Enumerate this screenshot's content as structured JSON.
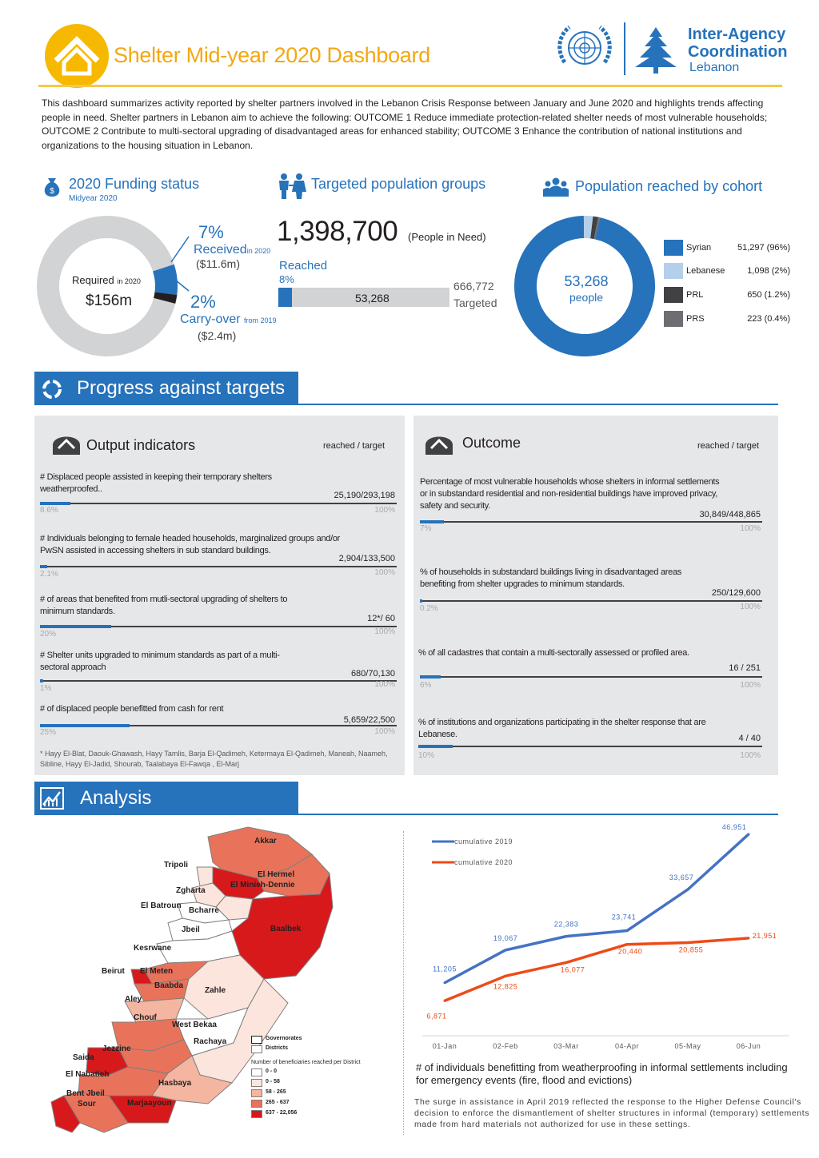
{
  "header": {
    "title": "Shelter Mid-year 2020 Dashboard",
    "org_line1": "Inter-Agency",
    "org_line2": "Coordination",
    "org_line3": "Lebanon"
  },
  "intro": "This dashboard summarizes activity reported by shelter partners involved in the Lebanon Crisis Response between January and June 2020 and highlights trends affecting people in need. Shelter partners in Lebanon aim to achieve the following: OUTCOME 1 Reduce immediate protection-related shelter needs of most vulnerable households; OUTCOME 2 Contribute to multi-sectoral upgrading of disadvantaged areas for enhanced stability; OUTCOME 3 Enhance the contribution of national institutions and organizations to the housing situation in Lebanon.",
  "funding": {
    "title": "2020 Funding status",
    "subtitle": "Midyear 2020",
    "required_label": "Required",
    "required_suffix": "in 2020",
    "required_value": "$156m",
    "received_pct": "7%",
    "received_label": "Received",
    "received_suffix": "in 2020",
    "received_amount": "($11.6m)",
    "carry_pct": "2%",
    "carry_label": "Carry-over",
    "carry_suffix": "from 2019",
    "carry_amount": "($2.4m)",
    "received_fraction": 0.07,
    "carry_fraction": 0.02
  },
  "targeted": {
    "title": "Targeted population groups",
    "people_in_need": "1,398,700",
    "pin_label": "(People in Need)",
    "reached_label": "Reached",
    "reached_pct": "8%",
    "reached_value": "53,268",
    "targeted_value": "666,772",
    "targeted_label": "Targeted",
    "reached_fraction": 0.08
  },
  "cohort": {
    "title": "Population reached by cohort",
    "center_value": "53,268",
    "center_label": "people",
    "groups": [
      {
        "name": "Syrian",
        "value": "51,297 (96%)",
        "share": 0.963,
        "color": "#2672bb"
      },
      {
        "name": "Lebanese",
        "value": "1,098 (2%)",
        "share": 0.021,
        "color": "#b4cfe9"
      },
      {
        "name": "PRL",
        "value": "650 (1.2%)",
        "share": 0.012,
        "color": "#414042"
      },
      {
        "name": "PRS",
        "value": "223 (0.4%)",
        "share": 0.004,
        "color": "#6d6e71"
      }
    ]
  },
  "progress": {
    "title": "Progress against targets",
    "output": {
      "heading": "Output indicators",
      "col_label": "reached / target",
      "indicators": [
        {
          "text": "# Displaced people assisted in keeping their temporary shelters weatherproofed..",
          "value": "25,190/293,198",
          "pct": "8.6%",
          "full": "100%",
          "fraction": 0.086
        },
        {
          "text": "# Individuals belonging to female headed households, marginalized groups and/or PwSN assisted in accessing shelters in sub standard buildings.",
          "value": "2,904/133,500",
          "pct": "2.1%",
          "full": "100%",
          "fraction": 0.021
        },
        {
          "text": "# of areas that benefited from mutli-sectoral upgrading of shelters to minimum standards.",
          "value": "12*/ 60",
          "pct": "20%",
          "full": "100%",
          "fraction": 0.2
        },
        {
          "text": "# Shelter units upgraded to minimum standards as part of a multi-sectoral approach",
          "value": "680/70,130",
          "pct": "1%",
          "full": "100%",
          "fraction": 0.01
        },
        {
          "text": "# of displaced people benefitted from cash for rent",
          "value": "5,659/22,500",
          "pct": "25%",
          "full": "100%",
          "fraction": 0.25
        }
      ],
      "footnote": "* Hayy El-Blat, Daouk-Ghawash, Hayy Tamlis, Barja El-Qadimeh, Ketermaya El-Qadimeh, Maneah, Naameh, Sibline, Hayy El-Jadid, Shourab, Taalabaya El-Fawqa , El-Marj"
    },
    "outcome": {
      "heading": "Outcome",
      "col_label": "reached / target",
      "indicators": [
        {
          "text": "Percentage of most vulnerable households whose shelters in informal settlements or in substandard residential and non-residential buildings have improved privacy, safety and security.",
          "value": "30,849/448,865",
          "pct": "7%",
          "full": "100%",
          "fraction": 0.07
        },
        {
          "text": "% of households in substandard buildings living in disadvantaged areas benefiting from shelter upgrades to minimum standards.",
          "value": "250/129,600",
          "pct": "0.2%",
          "full": "100%",
          "fraction": 0.002
        },
        {
          "text": "% of all cadastres that contain a multi-sectorally assessed or profiled area.",
          "value": "16 / 251",
          "pct": "6%",
          "full": "100%",
          "fraction": 0.06
        },
        {
          "text": "% of institutions and organizations participating in the shelter response that are Lebanese.",
          "value": "4 / 40",
          "pct": "10%",
          "full": "100%",
          "fraction": 0.1
        }
      ]
    }
  },
  "analysis": {
    "title": "Analysis",
    "map": {
      "districts": [
        "Akkar",
        "Tripoli",
        "El Hermel",
        "El Minieh-Dennie",
        "Zgharta",
        "El Batroun",
        "Bcharre",
        "Jbeil",
        "Baalbek",
        "Kesrwane",
        "Beirut",
        "El Meten",
        "Baabda",
        "Zahle",
        "Aley",
        "Chouf",
        "West Bekaa",
        "Rachaya",
        "Saida",
        "Jezzine",
        "El Nabatieh",
        "Hasbaya",
        "Bent Jbeil",
        "Sour",
        "Marjaayoun"
      ],
      "legend_governorates": "Governorates",
      "legend_districts": "Districts",
      "legend_title": "Number of beneficiaries reached per District",
      "legend_ranges": [
        "0 - 0",
        "0 - 58",
        "58 - 265",
        "265 - 637",
        "637 - 22,056"
      ],
      "legend_colors": [
        "#ffffff",
        "#fce5dc",
        "#f4b6a0",
        "#e8735a",
        "#d7191c"
      ]
    },
    "chart_data": {
      "type": "line",
      "categories": [
        "01-Jan",
        "02-Feb",
        "03-Mar",
        "04-Apr",
        "05-May",
        "06-Jun"
      ],
      "series": [
        {
          "name": "cumulative 2019",
          "color": "#4472c4",
          "values": [
            11205,
            19067,
            22383,
            23741,
            33657,
            46951
          ],
          "labels": [
            "11,205",
            "19,067",
            "22,383",
            "23,741",
            "33,657",
            "46,951"
          ]
        },
        {
          "name": "cumulative 2020",
          "color": "#ed4b18",
          "values": [
            6871,
            12825,
            16077,
            20440,
            20855,
            21951
          ],
          "labels": [
            "6,871",
            "12,825",
            "16,077",
            "20,440",
            "20,855",
            "21,951"
          ]
        }
      ],
      "ylim": [
        0,
        50000
      ]
    },
    "caption": "# of individuals benefitting from weatherproofing in informal settlements including for emergency events (fire, flood and evictions)",
    "note": "The surge in assistance in April 2019 reflected the response to the Higher Defense Council's decision to enforce the dismantlement of shelter structures in informal (temporary) settlements made from hard materials not authorized for use in these settings."
  }
}
